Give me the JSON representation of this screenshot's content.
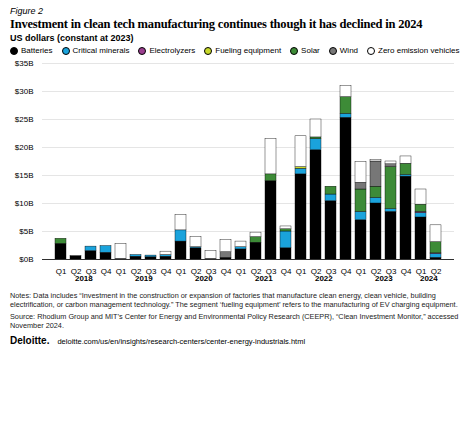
{
  "chart_data": {
    "type": "bar",
    "figure_label": "Figure 2",
    "title": "Investment in clean tech manufacturing continues though it has declined in 2024",
    "subtitle": "US dollars (constant at 2023)",
    "categories": [
      "Q1",
      "Q2",
      "Q3",
      "Q4",
      "Q1",
      "Q2",
      "Q3",
      "Q4",
      "Q1",
      "Q2",
      "Q3",
      "Q4",
      "Q1",
      "Q2",
      "Q3",
      "Q4",
      "Q1",
      "Q2",
      "Q3",
      "Q4",
      "Q1",
      "Q2",
      "Q3",
      "Q4",
      "Q1",
      "Q2"
    ],
    "years": [
      "2018",
      "2018",
      "2018",
      "2018",
      "2019",
      "2019",
      "2019",
      "2019",
      "2020",
      "2020",
      "2020",
      "2020",
      "2021",
      "2021",
      "2021",
      "2021",
      "2022",
      "2022",
      "2022",
      "2022",
      "2023",
      "2023",
      "2023",
      "2023",
      "2024",
      "2024"
    ],
    "series": [
      {
        "name": "Batteries",
        "color": "#000000",
        "values": [
          2.8,
          0.6,
          1.5,
          1.2,
          0.1,
          0.5,
          0.4,
          0.5,
          3.2,
          2.0,
          0.1,
          0.3,
          1.8,
          3.0,
          14.0,
          2.0,
          15.2,
          19.5,
          10.4,
          25.3,
          7.0,
          10.0,
          8.5,
          14.8,
          7.5,
          0.3
        ]
      },
      {
        "name": "Critical minerals",
        "color": "#1aa3dc",
        "values": [
          0,
          0,
          0.8,
          1.2,
          0,
          0.3,
          0.3,
          0.3,
          2.0,
          0.2,
          0,
          0,
          0.4,
          0,
          0,
          3.0,
          1.0,
          2.0,
          1.2,
          0.7,
          1.5,
          1.0,
          0.5,
          0.3,
          0.8,
          0.7
        ]
      },
      {
        "name": "Electrolyzers",
        "color": "#9b3f8f",
        "values": [
          0,
          0,
          0,
          0,
          0,
          0,
          0,
          0,
          0,
          0,
          0,
          0,
          0,
          0,
          0,
          0,
          0,
          0,
          0,
          0,
          0,
          0,
          0,
          0,
          0.2,
          0.1
        ]
      },
      {
        "name": "Fueling equipment",
        "color": "#c8d92b",
        "values": [
          0,
          0,
          0,
          0,
          0,
          0,
          0,
          0,
          0,
          0,
          0,
          0,
          0,
          0,
          0,
          0,
          0.3,
          0,
          0,
          0,
          0,
          0,
          0,
          0,
          0,
          0
        ]
      },
      {
        "name": "Solar",
        "color": "#3d8b37",
        "values": [
          0.9,
          0,
          0,
          0,
          0,
          0,
          0,
          0,
          0,
          0,
          0,
          0,
          0,
          1.0,
          1.2,
          0.4,
          0,
          0.3,
          1.4,
          3.0,
          4.0,
          2.0,
          7.5,
          2.0,
          1.3,
          2.0
        ]
      },
      {
        "name": "Wind",
        "color": "#777777",
        "values": [
          0,
          0,
          0,
          0,
          0,
          0,
          0,
          0,
          0,
          0,
          0,
          1.0,
          0,
          0,
          0,
          0,
          0,
          0,
          0,
          0,
          1.2,
          4.5,
          0.5,
          0,
          0,
          0
        ]
      },
      {
        "name": "Zero emission vehicles",
        "color": "#ffffff",
        "values": [
          0,
          0,
          0,
          0,
          2.7,
          0,
          0,
          0.6,
          2.8,
          1.8,
          1.4,
          2.2,
          1.0,
          0.8,
          6.3,
          0.5,
          5.5,
          3.2,
          0,
          2.0,
          3.7,
          0.3,
          0.5,
          1.3,
          2.7,
          3.0
        ]
      }
    ],
    "ylim": [
      0,
      35
    ],
    "yticks": [
      {
        "value": 0,
        "label": "$0B"
      },
      {
        "value": 5,
        "label": "$5B"
      },
      {
        "value": 10,
        "label": "$10B"
      },
      {
        "value": 15,
        "label": "$15B"
      },
      {
        "value": 20,
        "label": "$20B"
      },
      {
        "value": 25,
        "label": "$25B"
      },
      {
        "value": 30,
        "label": "$30B"
      },
      {
        "value": 35,
        "label": "$35B"
      }
    ],
    "stacked": true,
    "grid": true,
    "legend": "top",
    "notes": "Notes: Data includes “Investment in the construction or expansion of factories that manufacture clean energy, clean vehicle, building electrification, or carbon management technology.” The segment ‘fueling equipment’ refers to the manufacturing of EV charging equipment.",
    "source": "Source: Rhodium Group and MIT’s Center for Energy and Environmental Policy Research (CEEPR), “Clean Investment Monitor,” accessed November 2024.",
    "footer_brand": "Deloitte.",
    "footer_url": "deloitte.com/us/en/insights/research-centers/center-energy-industrials.html"
  }
}
